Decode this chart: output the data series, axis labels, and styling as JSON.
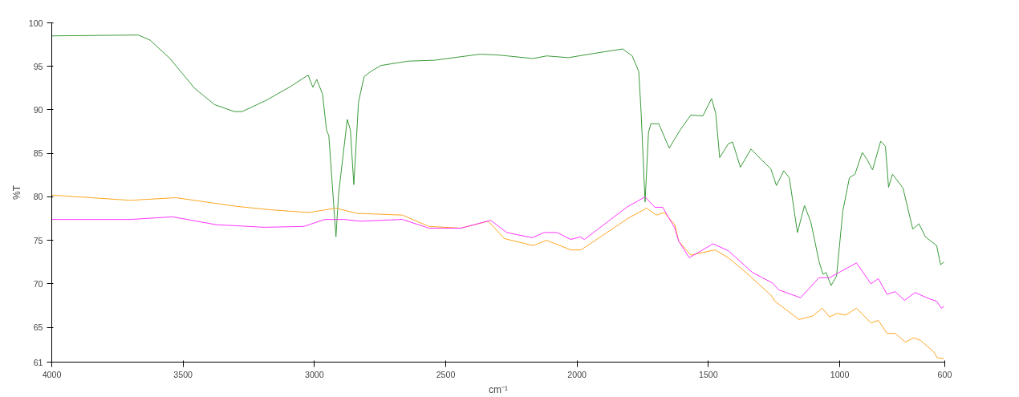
{
  "chart_data": {
    "type": "line",
    "xlabel": "cm⁻¹",
    "ylabel": "%T",
    "xlim": [
      4000,
      600
    ],
    "ylim": [
      61,
      100
    ],
    "xticks": [
      4000,
      3500,
      3000,
      2500,
      2000,
      1500,
      1000,
      600
    ],
    "yticks": [
      61,
      65,
      70,
      75,
      80,
      85,
      90,
      95,
      100
    ],
    "grid": false,
    "line_style": "solid",
    "marker": "none",
    "series": [
      {
        "color": "#3a9a3a",
        "x": [
          4000,
          3670,
          3625,
          3550,
          3457,
          3380,
          3305,
          3275,
          3183,
          3090,
          3024,
          3006,
          2991,
          2969,
          2954,
          2945,
          2918,
          2908,
          2875,
          2863,
          2850,
          2832,
          2811,
          2786,
          2747,
          2643,
          2543,
          2369,
          2299,
          2167,
          2116,
          2033,
          1933,
          1826,
          1790,
          1765,
          1756,
          1741,
          1728,
          1719,
          1689,
          1649,
          1607,
          1567,
          1521,
          1488,
          1472,
          1457,
          1424,
          1408,
          1378,
          1338,
          1299,
          1262,
          1241,
          1213,
          1192,
          1161,
          1134,
          1110,
          1079,
          1064,
          1052,
          1033,
          1012,
          988,
          963,
          942,
          914,
          896,
          875,
          844,
          826,
          814,
          799,
          759,
          722,
          698,
          674,
          631,
          616,
          603
        ],
        "values": [
          98.5,
          98.6,
          98.0,
          95.9,
          92.5,
          90.6,
          89.8,
          89.8,
          91.1,
          92.7,
          94.0,
          92.6,
          93.5,
          91.8,
          87.7,
          87.0,
          75.4,
          80.3,
          88.9,
          87.7,
          81.4,
          90.9,
          93.8,
          94.4,
          95.1,
          95.6,
          95.7,
          96.4,
          96.3,
          95.9,
          96.2,
          96.0,
          96.5,
          97.0,
          96.2,
          94.4,
          89.6,
          79.4,
          87.4,
          88.4,
          88.4,
          85.6,
          87.7,
          89.4,
          89.3,
          91.3,
          89.6,
          84.5,
          86.1,
          86.3,
          83.4,
          85.5,
          84.3,
          83.2,
          81.3,
          83.0,
          82.2,
          75.9,
          79.0,
          77.1,
          72.6,
          71.1,
          71.3,
          69.8,
          70.9,
          78.4,
          82.2,
          82.6,
          85.1,
          84.3,
          83.1,
          86.4,
          85.8,
          81.1,
          82.6,
          81.0,
          76.3,
          76.9,
          75.4,
          74.4,
          72.2,
          72.5
        ]
      },
      {
        "color": "#ffa520",
        "x": [
          4000,
          3701,
          3527,
          3296,
          3162,
          3021,
          2918,
          2838,
          2665,
          2564,
          2442,
          2338,
          2277,
          2167,
          2116,
          2024,
          1985,
          1802,
          1735,
          1698,
          1668,
          1628,
          1613,
          1567,
          1475,
          1424,
          1353,
          1262,
          1247,
          1155,
          1103,
          1067,
          1039,
          1009,
          978,
          936,
          881,
          853,
          820,
          789,
          750,
          719,
          692,
          643,
          628,
          603
        ],
        "values": [
          80.2,
          79.6,
          79.9,
          78.9,
          78.5,
          78.2,
          78.7,
          78.1,
          77.9,
          76.6,
          76.4,
          77.2,
          75.2,
          74.4,
          75.0,
          73.9,
          73.9,
          77.6,
          78.7,
          77.9,
          78.2,
          76.8,
          74.9,
          73.3,
          73.9,
          73.0,
          71.2,
          68.7,
          68.0,
          65.9,
          66.3,
          67.2,
          66.2,
          66.6,
          66.4,
          67.2,
          65.5,
          65.8,
          64.3,
          64.3,
          63.3,
          63.8,
          63.5,
          62.2,
          61.5,
          61.4
        ]
      },
      {
        "color": "#ff33ff",
        "x": [
          4000,
          3701,
          3540,
          3375,
          3192,
          3040,
          2960,
          2887,
          2826,
          2665,
          2564,
          2442,
          2329,
          2268,
          2171,
          2125,
          2076,
          2024,
          1988,
          1972,
          1811,
          1741,
          1704,
          1674,
          1628,
          1613,
          1573,
          1482,
          1424,
          1332,
          1256,
          1232,
          1149,
          1079,
          1039,
          997,
          936,
          881,
          853,
          820,
          789,
          753,
          713,
          661,
          631,
          613,
          603
        ],
        "values": [
          77.4,
          77.4,
          77.7,
          76.8,
          76.5,
          76.6,
          77.4,
          77.4,
          77.2,
          77.4,
          76.4,
          76.4,
          77.3,
          75.9,
          75.3,
          75.9,
          75.9,
          75.1,
          75.4,
          75.1,
          78.8,
          80.0,
          78.8,
          78.8,
          76.4,
          74.9,
          73.0,
          74.6,
          73.8,
          71.3,
          70.1,
          69.3,
          68.4,
          70.7,
          70.7,
          71.4,
          72.4,
          70.0,
          70.6,
          68.8,
          69.1,
          68.1,
          69.0,
          68.3,
          68.0,
          67.2,
          67.4
        ]
      }
    ]
  }
}
